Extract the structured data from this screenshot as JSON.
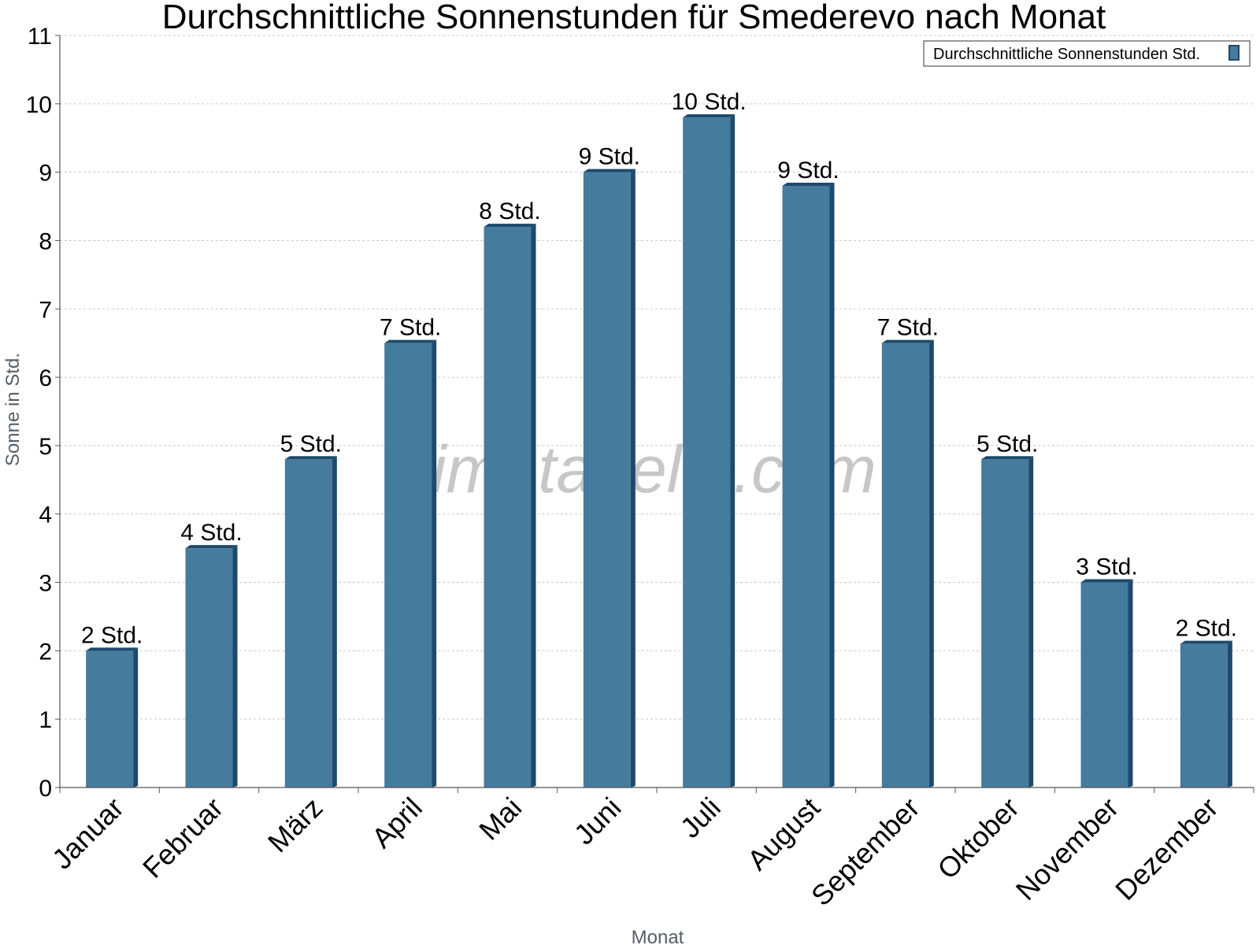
{
  "watermark": "klimatabelle.com",
  "colors": {
    "bar_front": "#457b9d",
    "bar_side": "#1d4a6b",
    "bar_top": "#1d4a6b",
    "grid": "#c8c8c8"
  },
  "chart_data": {
    "type": "bar",
    "title": "Durchschnittliche Sonnenstunden für Smederevo nach Monat",
    "xlabel": "Monat",
    "ylabel": "Sonne in Std.",
    "ylim": [
      0,
      11
    ],
    "yticks": [
      "0",
      "1",
      "2",
      "3",
      "4",
      "5",
      "6",
      "7",
      "8",
      "9",
      "10",
      "11"
    ],
    "grid": true,
    "legend_position": "top-right",
    "categories": [
      "Januar",
      "Februar",
      "März",
      "April",
      "Mai",
      "Juni",
      "Juli",
      "August",
      "September",
      "Oktober",
      "November",
      "Dezember"
    ],
    "series": [
      {
        "name": "Durchschnittliche Sonnenstunden Std.",
        "values": [
          2.0,
          3.5,
          4.8,
          6.5,
          8.2,
          9.0,
          9.8,
          8.8,
          6.5,
          4.8,
          3.0,
          2.1
        ],
        "labels": [
          "2 Std.",
          "4 Std.",
          "5 Std.",
          "7 Std.",
          "8 Std.",
          "9 Std.",
          "10 Std.",
          "9 Std.",
          "7 Std.",
          "5 Std.",
          "3 Std.",
          "2 Std."
        ]
      }
    ]
  }
}
